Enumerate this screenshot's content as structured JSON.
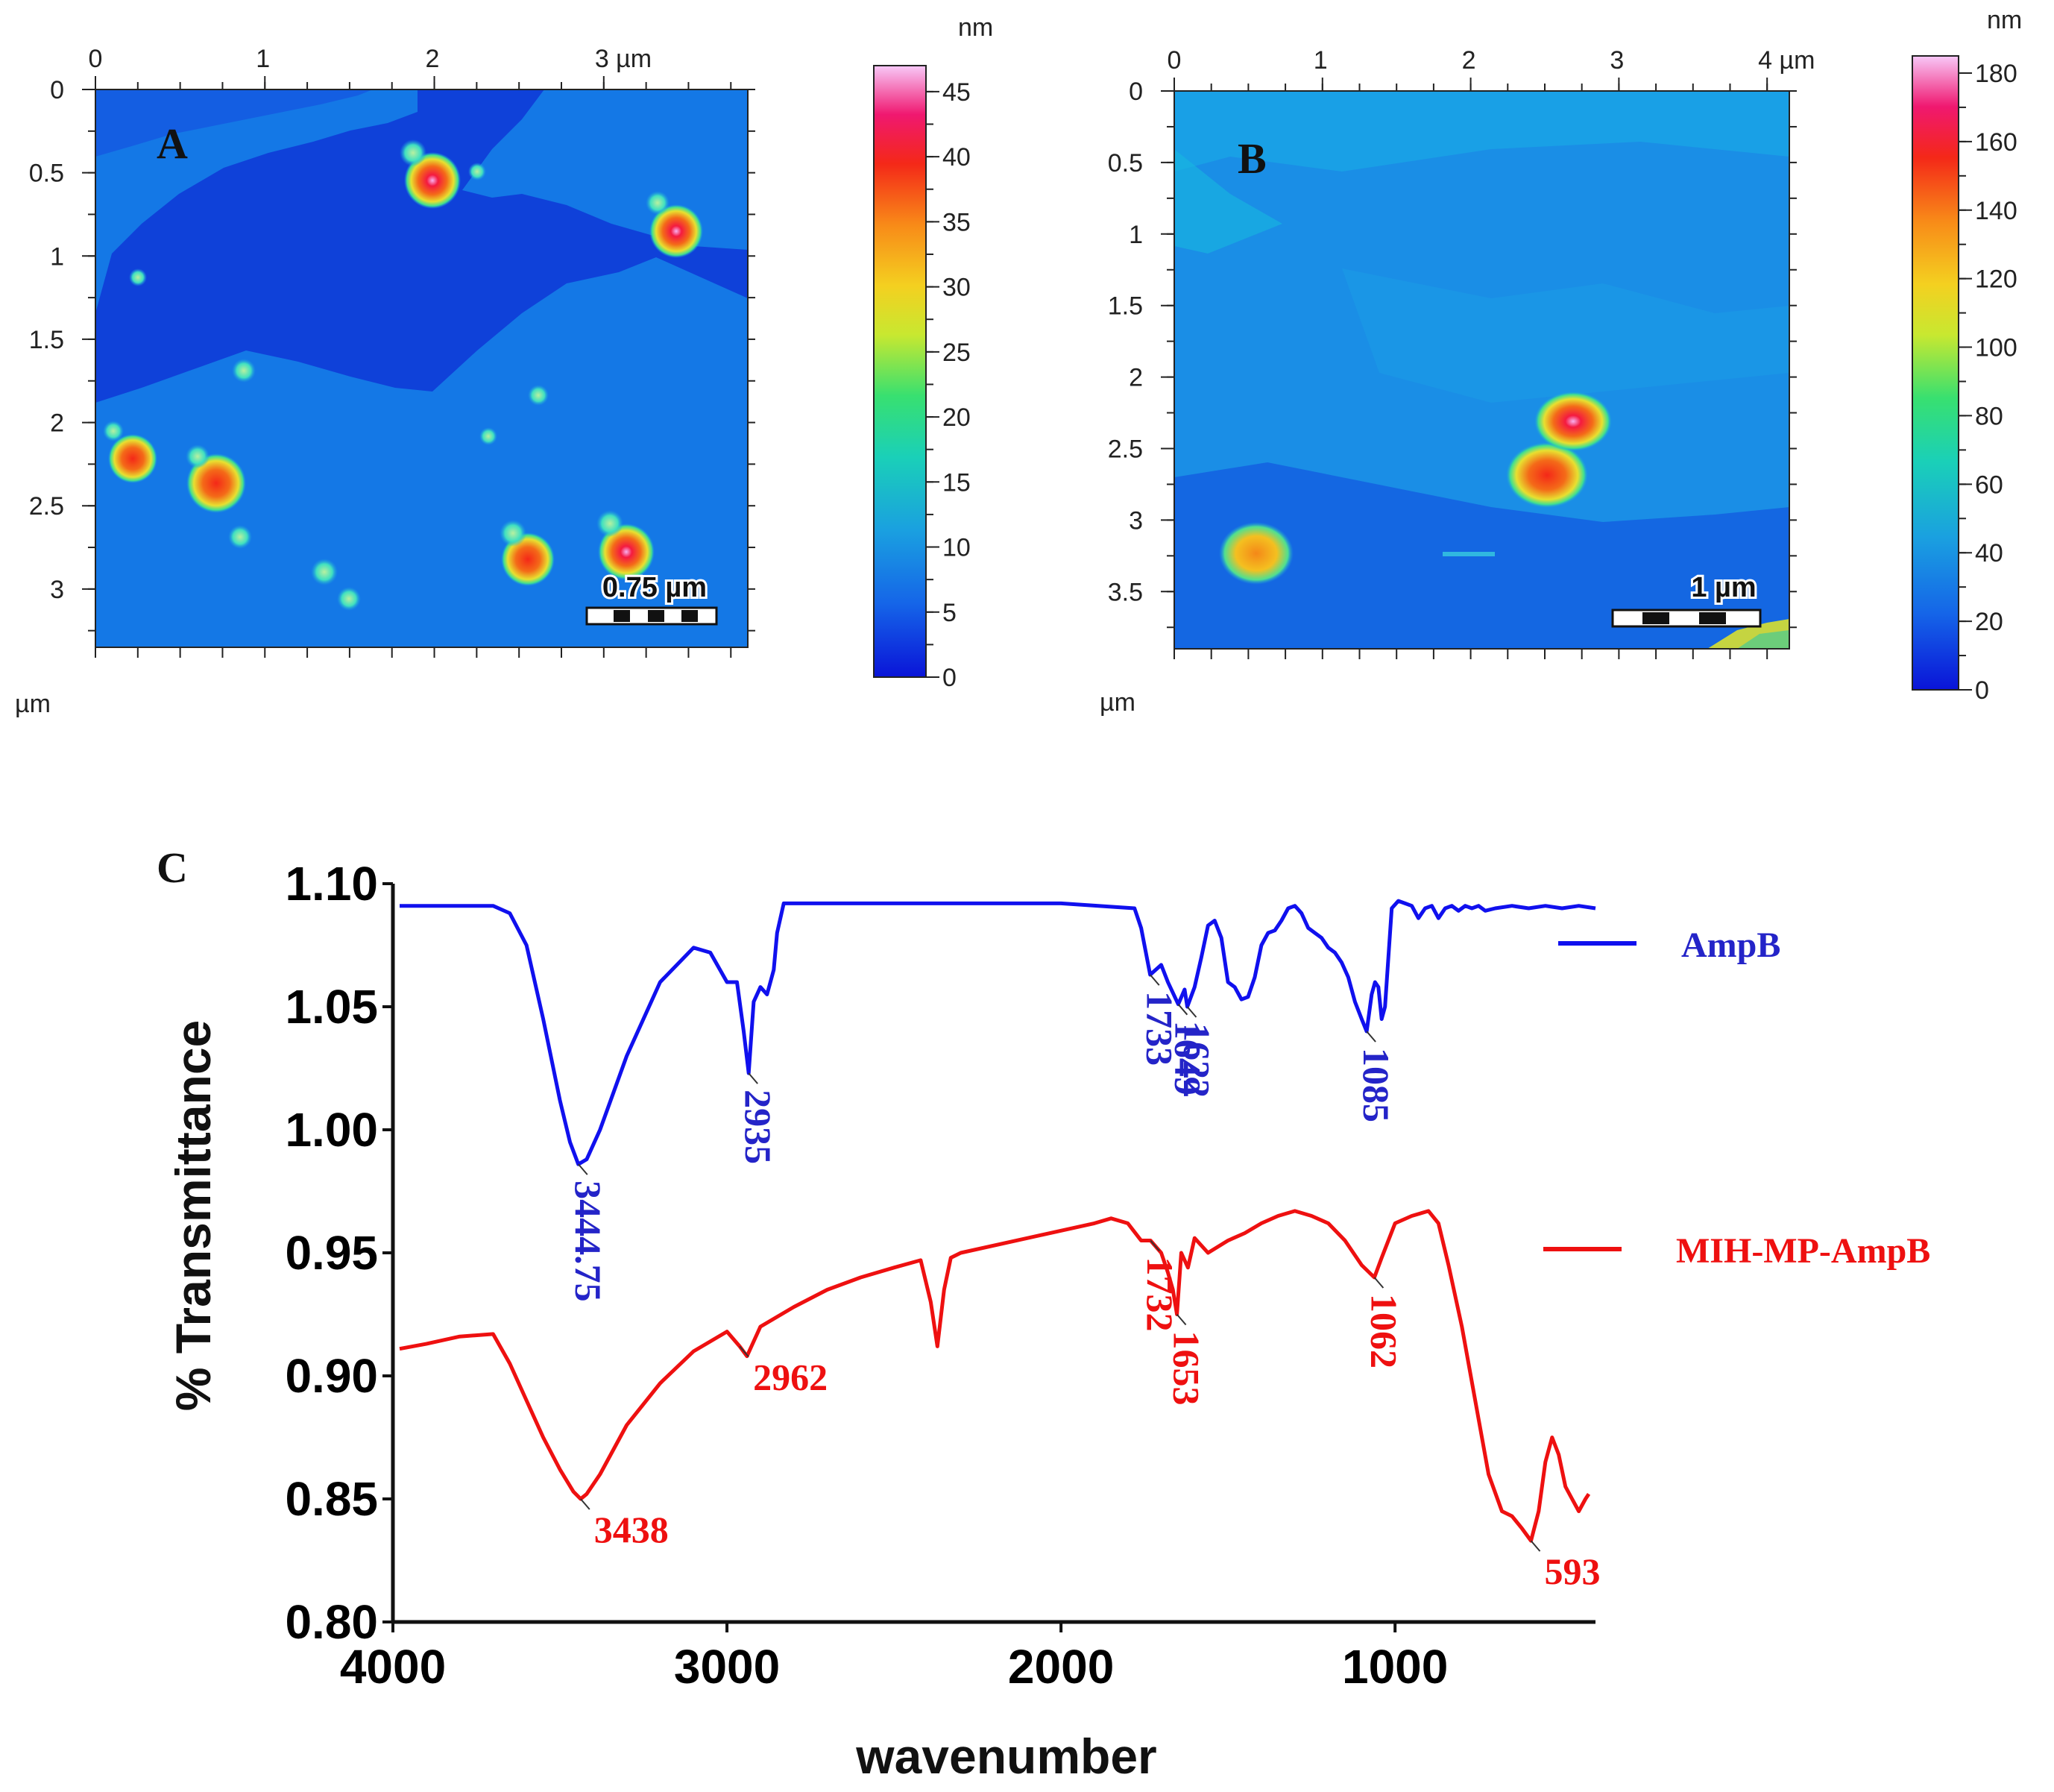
{
  "colors": {
    "blue_series": "#1010ee",
    "red_series": "#ee1010",
    "axis": "#111111"
  },
  "afm_a": {
    "panel_label": "A",
    "x_ticks": [
      "0",
      "1",
      "2",
      "3 µm"
    ],
    "x_tick_values": [
      0,
      1,
      2,
      3
    ],
    "y_ticks": [
      "0",
      "0.5",
      "1",
      "1.5",
      "2",
      "2.5",
      "3"
    ],
    "y_tick_values": [
      0,
      0.5,
      1,
      1.5,
      2,
      2.5,
      3
    ],
    "x_range": [
      0,
      3.85
    ],
    "y_range": [
      0,
      3.35
    ],
    "axis_unit": "µm",
    "scale_bar": "0.75 µm",
    "colorbar_unit": "nm",
    "colorbar_ticks": [
      "0",
      "5",
      "10",
      "15",
      "20",
      "25",
      "30",
      "35",
      "40",
      "45"
    ],
    "colorbar_values": [
      0,
      5,
      10,
      15,
      20,
      25,
      30,
      35,
      40,
      45
    ],
    "colorbar_range": [
      0,
      47
    ]
  },
  "afm_b": {
    "panel_label": "B",
    "x_ticks": [
      "0",
      "1",
      "2",
      "3",
      "4 µm"
    ],
    "x_tick_values": [
      0,
      1,
      2,
      3,
      4
    ],
    "y_ticks": [
      "0",
      "0.5",
      "1",
      "1.5",
      "2",
      "2.5",
      "3",
      "3.5"
    ],
    "y_tick_values": [
      0,
      0.5,
      1,
      1.5,
      2,
      2.5,
      3,
      3.5
    ],
    "x_range": [
      0,
      4.15
    ],
    "y_range": [
      0,
      3.9
    ],
    "axis_unit": "µm",
    "scale_bar": "1 µm",
    "colorbar_unit": "nm",
    "colorbar_ticks": [
      "0",
      "20",
      "40",
      "60",
      "80",
      "100",
      "120",
      "140",
      "160",
      "180"
    ],
    "colorbar_values": [
      0,
      20,
      40,
      60,
      80,
      100,
      120,
      140,
      160,
      180
    ],
    "colorbar_range": [
      0,
      185
    ]
  },
  "chart_data": {
    "type": "line",
    "panel_label": "C",
    "title": "",
    "xlabel": "wavenumber",
    "ylabel": "% Transmittance",
    "xlim": [
      4000,
      400
    ],
    "ylim": [
      0.8,
      1.1
    ],
    "x_ticks": [
      "4000",
      "3000",
      "2000",
      "1000"
    ],
    "x_tick_values": [
      4000,
      3000,
      2000,
      1000
    ],
    "y_ticks": [
      "0.80",
      "0.85",
      "0.90",
      "0.95",
      "1.00",
      "1.05",
      "1.10"
    ],
    "y_tick_values": [
      0.8,
      0.85,
      0.9,
      0.95,
      1.0,
      1.05,
      1.1
    ],
    "legend_position": "right",
    "series": [
      {
        "name": "AmpB",
        "color": "#1010ee",
        "x": [
          3980,
          3700,
          3650,
          3600,
          3550,
          3500,
          3470,
          3445,
          3420,
          3380,
          3300,
          3200,
          3100,
          3050,
          3000,
          2970,
          2950,
          2935,
          2920,
          2900,
          2880,
          2860,
          2850,
          2830,
          2000,
          1780,
          1760,
          1733,
          1700,
          1680,
          1649,
          1630,
          1622,
          1600,
          1580,
          1560,
          1540,
          1520,
          1500,
          1480,
          1460,
          1440,
          1420,
          1400,
          1380,
          1360,
          1340,
          1320,
          1300,
          1280,
          1260,
          1240,
          1220,
          1200,
          1180,
          1160,
          1140,
          1120,
          1100,
          1085,
          1070,
          1060,
          1050,
          1040,
          1030,
          1010,
          990,
          970,
          950,
          930,
          910,
          890,
          870,
          850,
          830,
          810,
          790,
          770,
          750,
          730,
          700,
          650,
          600,
          550,
          500,
          450,
          400
        ],
        "y": [
          1.091,
          1.091,
          1.088,
          1.075,
          1.045,
          1.012,
          0.995,
          0.986,
          0.988,
          1.0,
          1.03,
          1.06,
          1.074,
          1.072,
          1.06,
          1.06,
          1.04,
          1.023,
          1.052,
          1.058,
          1.055,
          1.065,
          1.08,
          1.092,
          1.092,
          1.09,
          1.082,
          1.063,
          1.067,
          1.06,
          1.051,
          1.057,
          1.05,
          1.058,
          1.07,
          1.083,
          1.085,
          1.078,
          1.06,
          1.058,
          1.053,
          1.054,
          1.062,
          1.075,
          1.08,
          1.081,
          1.085,
          1.09,
          1.091,
          1.088,
          1.082,
          1.08,
          1.078,
          1.074,
          1.072,
          1.068,
          1.062,
          1.052,
          1.045,
          1.04,
          1.055,
          1.06,
          1.058,
          1.045,
          1.05,
          1.09,
          1.093,
          1.092,
          1.091,
          1.086,
          1.09,
          1.091,
          1.086,
          1.09,
          1.091,
          1.089,
          1.091,
          1.09,
          1.091,
          1.089,
          1.09,
          1.091,
          1.09,
          1.091,
          1.09,
          1.091,
          1.09
        ]
      },
      {
        "name": "MIH-MP-AmpB",
        "color": "#ee1010",
        "x": [
          3980,
          3900,
          3800,
          3700,
          3650,
          3600,
          3550,
          3500,
          3460,
          3438,
          3420,
          3380,
          3300,
          3200,
          3100,
          3000,
          2962,
          2940,
          2900,
          2800,
          2700,
          2600,
          2500,
          2420,
          2390,
          2370,
          2350,
          2330,
          2300,
          2100,
          1900,
          1850,
          1800,
          1760,
          1732,
          1700,
          1680,
          1665,
          1653,
          1640,
          1620,
          1600,
          1560,
          1500,
          1450,
          1400,
          1350,
          1300,
          1250,
          1200,
          1150,
          1100,
          1062,
          1040,
          1000,
          950,
          900,
          870,
          840,
          800,
          760,
          720,
          680,
          650,
          620,
          593,
          570,
          550,
          530,
          510,
          490,
          470,
          450,
          430,
          420
        ],
        "y": [
          0.911,
          0.913,
          0.916,
          0.917,
          0.905,
          0.89,
          0.875,
          0.862,
          0.853,
          0.85,
          0.852,
          0.86,
          0.88,
          0.897,
          0.91,
          0.918,
          0.912,
          0.908,
          0.92,
          0.928,
          0.935,
          0.94,
          0.944,
          0.947,
          0.93,
          0.912,
          0.935,
          0.948,
          0.95,
          0.956,
          0.962,
          0.964,
          0.962,
          0.955,
          0.955,
          0.95,
          0.942,
          0.935,
          0.925,
          0.95,
          0.944,
          0.956,
          0.95,
          0.955,
          0.958,
          0.962,
          0.965,
          0.967,
          0.965,
          0.962,
          0.955,
          0.945,
          0.94,
          0.948,
          0.962,
          0.965,
          0.967,
          0.962,
          0.945,
          0.92,
          0.89,
          0.86,
          0.845,
          0.843,
          0.838,
          0.833,
          0.845,
          0.865,
          0.875,
          0.868,
          0.855,
          0.85,
          0.845,
          0.85,
          0.852
        ]
      }
    ],
    "annotations": [
      {
        "series": "AmpB",
        "x": 3444.75,
        "label": "3444.75",
        "rotate": 90
      },
      {
        "series": "AmpB",
        "x": 2935,
        "label": "2935",
        "rotate": 90
      },
      {
        "series": "AmpB",
        "x": 1733,
        "label": "1733",
        "rotate": 90
      },
      {
        "series": "AmpB",
        "x": 1649,
        "label": "1649",
        "rotate": 90
      },
      {
        "series": "AmpB",
        "x": 1622,
        "label": "1622",
        "rotate": 90
      },
      {
        "series": "AmpB",
        "x": 1085,
        "label": "1085",
        "rotate": 90
      },
      {
        "series": "MIH-MP-AmpB",
        "x": 3438,
        "label": "3438",
        "rotate": 0
      },
      {
        "series": "MIH-MP-AmpB",
        "x": 2962,
        "label": "2962",
        "rotate": 0
      },
      {
        "series": "MIH-MP-AmpB",
        "x": 1732,
        "label": "1732",
        "rotate": 90
      },
      {
        "series": "MIH-MP-AmpB",
        "x": 1653,
        "label": "1653",
        "rotate": 90
      },
      {
        "series": "MIH-MP-AmpB",
        "x": 1062,
        "label": "1062",
        "rotate": 90
      },
      {
        "series": "MIH-MP-AmpB",
        "x": 593,
        "label": "593",
        "rotate": 0
      }
    ]
  }
}
